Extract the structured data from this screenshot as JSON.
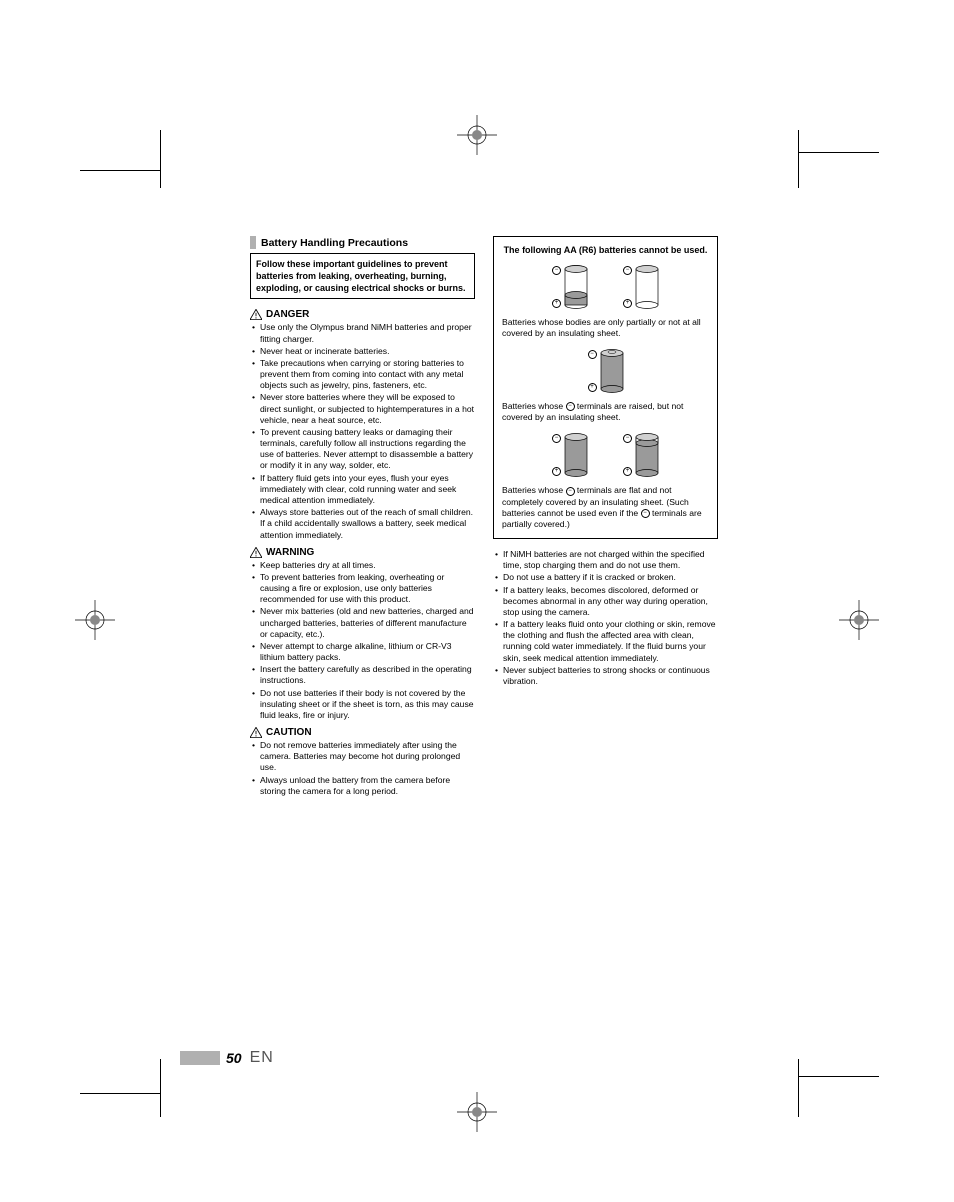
{
  "page": {
    "number": "50",
    "lang": "EN"
  },
  "title": "Battery Handling Precautions",
  "intro": "Follow these important guidelines to prevent batteries from leaking, overheating, burning, exploding, or causing electrical shocks or burns.",
  "danger": {
    "label": "DANGER",
    "items": [
      "Use only the Olympus brand NiMH batteries and proper fitting charger.",
      "Never heat or incinerate batteries.",
      "Take precautions when carrying or storing batteries to prevent them from coming into contact with any metal objects such as jewelry, pins, fasteners, etc.",
      "Never store batteries where they will be exposed to direct sunlight, or subjected to hightemperatures in a hot vehicle, near a heat source, etc.",
      "To prevent causing battery leaks or damaging their terminals, carefully follow all instructions regarding the use of batteries. Never attempt to disassemble a battery or modify it in any way, solder, etc.",
      "If battery fluid gets into your eyes, flush your eyes immediately with clear, cold running water and seek medical attention immediately.",
      "Always store batteries out of the reach of small children. If a child accidentally swallows a battery, seek medical attention immediately."
    ]
  },
  "warning": {
    "label": "WARNING",
    "items": [
      "Keep batteries dry at all times.",
      "To prevent batteries from leaking, overheating or causing a fire or explosion, use only batteries recommended for use with this product.",
      "Never mix batteries (old and new batteries, charged and uncharged batteries, batteries of different manufacture or capacity, etc.).",
      "Never attempt to charge alkaline, lithium or CR-V3 lithium battery packs.",
      "Insert the battery carefully as described in the operating instructions.",
      "Do not use batteries if their body is not covered by the insulating sheet or if the sheet is torn, as this may cause fluid leaks, fire or injury."
    ]
  },
  "caution": {
    "label": "CAUTION",
    "items": [
      "Do not remove batteries immediately after using the camera. Batteries may become hot during prolonged use.",
      "Always unload the battery from the camera before storing the camera for a long period."
    ]
  },
  "batteryBox": {
    "title": "The following AA (R6) batteries cannot be used.",
    "caption1": "Batteries whose bodies are only partially or not at all covered by an insulating sheet.",
    "caption2a": "Batteries whose ",
    "caption2b": " terminals are raised, but not covered by an insulating sheet.",
    "caption3a": "Batteries whose ",
    "caption3b": " terminals are flat and not completely covered by an insulating sheet. (Such batteries cannot be used even if the ",
    "caption3c": " terminals are partially covered.)"
  },
  "rightBullets": [
    "If NiMH batteries are not charged within the specified time, stop charging them and do not use them.",
    "Do not use a battery if it is cracked or broken.",
    "If a battery leaks, becomes discolored, deformed or becomes abnormal in any other way during operation, stop using the camera.",
    "If a battery leaks fluid onto your clothing or skin, remove the clothing and flush the affected area with clean, running cold water immediately. If the fluid burns your skin, seek medical attention immediately.",
    "Never subject batteries to strong shocks or continuous vibration."
  ],
  "colors": {
    "lightgray": "#b0b0b0",
    "midgray": "#9a9a9a",
    "darkgray": "#6a6a6a"
  }
}
